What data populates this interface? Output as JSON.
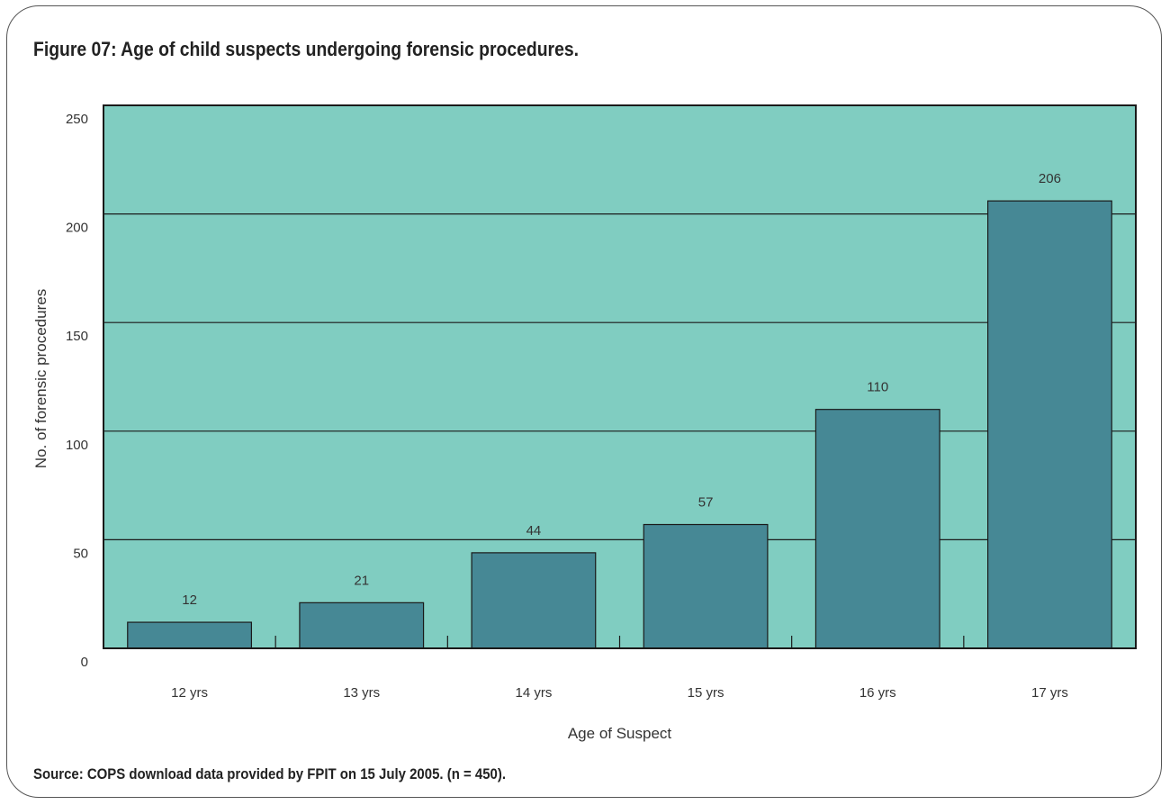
{
  "figure": {
    "title": "Figure 07: Age of child suspects undergoing forensic procedures.",
    "source": "Source: COPS download data provided by FPIT on 15 July 2005. (n = 450)."
  },
  "colors": {
    "plot_background": "#80cdc1",
    "bar_fill": "#468895",
    "frame_border": "#555555"
  },
  "chart_data": {
    "type": "bar",
    "categories": [
      "12 yrs",
      "13 yrs",
      "14 yrs",
      "15 yrs",
      "16 yrs",
      "17 yrs"
    ],
    "values": [
      12,
      21,
      44,
      57,
      110,
      206
    ],
    "xlabel": "Age of Suspect",
    "ylabel": "No. of forensic procedures",
    "ylim": [
      0,
      250
    ],
    "yticks": [
      0,
      50,
      100,
      150,
      200,
      250
    ],
    "grid": true,
    "data_labels": true
  }
}
